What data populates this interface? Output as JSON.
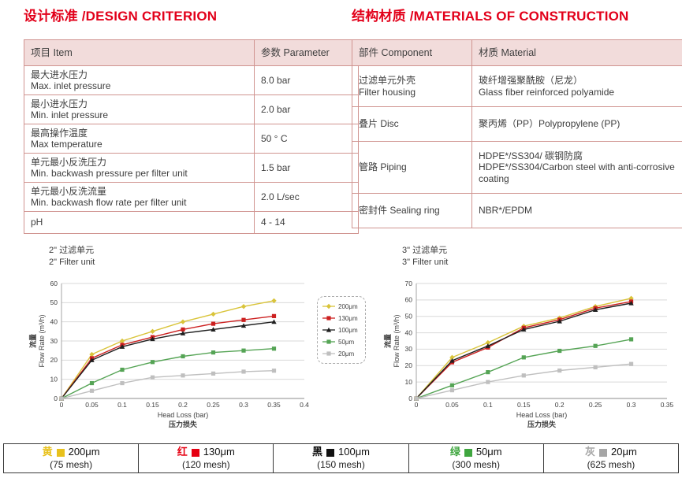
{
  "colors": {
    "accent_red": "#e2001a",
    "table_border": "#d09490",
    "table_header_bg": "#f2dcdb"
  },
  "headings": {
    "left": "设计标准 /DESIGN CRITERION",
    "right": "结构材质 /MATERIALS OF CONSTRUCTION"
  },
  "design_table": {
    "headers": [
      "项目 Item",
      "参数 Parameter"
    ],
    "rows": [
      {
        "cn": "最大进水压力",
        "en": "Max. inlet pressure",
        "value": "8.0 bar"
      },
      {
        "cn": "最小进水压力",
        "en": "Min. inlet pressure",
        "value": "2.0 bar"
      },
      {
        "cn": "最高操作温度",
        "en": "Max temperature",
        "value": "50 ° C"
      },
      {
        "cn": "单元最小反洗压力",
        "en": "Min. backwash pressure per filter unit",
        "value": "1.5 bar"
      },
      {
        "cn": "单元最小反洗流量",
        "en": "Min. backwash flow rate per filter unit",
        "value": "2.0 L/sec"
      },
      {
        "cn": "pH",
        "value": "4 - 14"
      }
    ]
  },
  "materials_table": {
    "headers": [
      "部件 Component",
      "材质 Material"
    ],
    "rows": [
      {
        "cn": "过滤单元外壳",
        "en": "Filter housing",
        "m1": "玻纤增强聚酰胺（尼龙）",
        "m2": "Glass fiber reinforced polyamide"
      },
      {
        "cn": "叠片 Disc",
        "m1": "聚丙烯（PP）Polypropylene (PP)"
      },
      {
        "cn": "管路 Piping",
        "m1": "HDPE*/SS304/ 碳钢防腐",
        "m2": "HDPE*/SS304/Carbon steel with anti-corrosive coating"
      },
      {
        "cn": "密封件 Sealing ring",
        "m1": "NBR*/EPDM"
      }
    ]
  },
  "chart_data": [
    {
      "type": "line",
      "title_cn": "2\" 过滤单元",
      "title_en": "2\" Filter unit",
      "xlabel": "Head Loss (bar)",
      "xlabel_cn": "压力损失",
      "ylabel_cn": "流量",
      "ylabel": "Flow Rate (m³/h)",
      "xlim": [
        0,
        0.4
      ],
      "ylim": [
        0,
        60
      ],
      "xticks": [
        0,
        0.05,
        0.1,
        0.15,
        0.2,
        0.25,
        0.3,
        0.35,
        0.4
      ],
      "xtick_labels": [
        "0",
        "0.05",
        "0.1",
        "0.15",
        "0.2",
        "0.25",
        "0.3",
        "0.35",
        "0.4"
      ],
      "yticks": [
        0,
        10,
        20,
        30,
        40,
        50,
        60
      ],
      "grid": true,
      "legend_position": "right-outside",
      "x": [
        0,
        0.05,
        0.1,
        0.15,
        0.2,
        0.25,
        0.3,
        0.35
      ],
      "series": [
        {
          "name": "200μm",
          "color": "#d9c43a",
          "marker": "diamond",
          "values": [
            0,
            23,
            30,
            35,
            40,
            44,
            48,
            51
          ]
        },
        {
          "name": "130μm",
          "color": "#cc2020",
          "marker": "square",
          "values": [
            0,
            21,
            28,
            32,
            36,
            39,
            41,
            43
          ]
        },
        {
          "name": "100μm",
          "color": "#1f1f1f",
          "marker": "triangle",
          "values": [
            0,
            20,
            27,
            31,
            34,
            36,
            38,
            40
          ]
        },
        {
          "name": "50μm",
          "color": "#55a455",
          "marker": "square",
          "values": [
            0,
            8,
            15,
            19,
            22,
            24,
            25,
            26
          ]
        },
        {
          "name": "20μm",
          "color": "#bfbfbf",
          "marker": "square",
          "values": [
            0,
            4,
            8,
            11,
            12,
            13,
            14,
            14.5
          ]
        }
      ]
    },
    {
      "type": "line",
      "title_cn": "3\" 过滤单元",
      "title_en": "3\" Filter unit",
      "xlabel": "Head Loss (bar)",
      "xlabel_cn": "压力损失",
      "ylabel_cn": "流量",
      "ylabel": "Flow Rate (m³/h)",
      "xlim": [
        0,
        0.35
      ],
      "ylim": [
        0,
        70
      ],
      "xticks": [
        0,
        0.05,
        0.1,
        0.15,
        0.2,
        0.25,
        0.3,
        0.35
      ],
      "xtick_labels": [
        "0",
        "0.05",
        "0.1",
        "0.15",
        "0.2",
        "0.25",
        "0.3",
        "0.35"
      ],
      "yticks": [
        0,
        10,
        20,
        30,
        40,
        50,
        60,
        70
      ],
      "grid": true,
      "x": [
        0,
        0.05,
        0.1,
        0.15,
        0.2,
        0.25,
        0.3
      ],
      "series": [
        {
          "name": "200μm",
          "color": "#d9c43a",
          "marker": "diamond",
          "values": [
            0,
            25,
            34,
            44,
            49,
            56,
            61
          ]
        },
        {
          "name": "130μm",
          "color": "#cc2020",
          "marker": "square",
          "values": [
            0,
            22,
            31,
            43,
            48,
            55,
            59
          ]
        },
        {
          "name": "100μm",
          "color": "#1f1f1f",
          "marker": "triangle",
          "values": [
            0,
            23,
            32,
            42,
            47,
            54,
            58
          ]
        },
        {
          "name": "50μm",
          "color": "#55a455",
          "marker": "square",
          "values": [
            0,
            8,
            16,
            25,
            29,
            32,
            36
          ]
        },
        {
          "name": "20μm",
          "color": "#bfbfbf",
          "marker": "square",
          "values": [
            0,
            5,
            10,
            14,
            17,
            19,
            21
          ]
        }
      ]
    }
  ],
  "bottom_legend": [
    {
      "cn": "黄",
      "label": "200μm",
      "mesh": "(75 mesh)",
      "color": "#e8c11c"
    },
    {
      "cn": "红",
      "label": "130μm",
      "mesh": "(120 mesh)",
      "color": "#e60012"
    },
    {
      "cn": "黑",
      "label": "100μm",
      "mesh": "(150 mesh)",
      "color": "#111111"
    },
    {
      "cn": "绿",
      "label": "50μm",
      "mesh": "(300 mesh)",
      "color": "#3fa63f"
    },
    {
      "cn": "灰",
      "label": "20μm",
      "mesh": "(625 mesh)",
      "color": "#a6a6a6"
    }
  ]
}
